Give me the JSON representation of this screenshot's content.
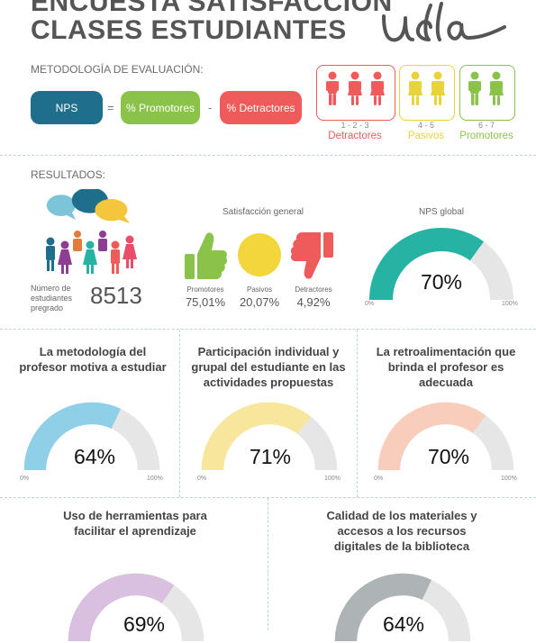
{
  "header": {
    "title_line1": "ENCUESTA SATISFACCIÓN",
    "title_line2": "CLASES ESTUDIANTES",
    "logo_text": "udla"
  },
  "methodology": {
    "label": "METODOLOGÍA DE EVALUACIÓN:",
    "nps": "NPS",
    "equals": "=",
    "promoters": "% Promotores",
    "minus": "-",
    "detractors": "% Detractores"
  },
  "scale": {
    "detractors_nums": "1 - 2 - 3",
    "detractors_label": "Detractores",
    "passives_nums": "4 - 5",
    "passives_label": "Pasivos",
    "promoters_nums": "6 - 7",
    "promoters_label": "Promotores"
  },
  "results": {
    "label": "RESULTADOS:",
    "students_label": "Número de estudiantes pregrado",
    "students_count": "8513",
    "satisfaction_title": "Satisfacción general",
    "promoters_label": "Promotores",
    "promoters_value": "75,01%",
    "passives_label": "Pasivos",
    "passives_value": "20,07%",
    "detractors_label": "Detractores",
    "detractors_value": "4,92%",
    "nps_title": "NPS global",
    "nps_value": "70%",
    "nps_level": 0.7,
    "tick_min": "0%",
    "tick_max": "100%"
  },
  "cards": [
    {
      "title": "La metodología del profesor motiva a estudiar",
      "value": "64%",
      "level": 0.64,
      "color": "#8fd0e8"
    },
    {
      "title": "Participación individual y grupal del estudiante en las actividades propuestas",
      "value": "71%",
      "level": 0.71,
      "color": "#f7e69b"
    },
    {
      "title": "La retroalimentación que brinda el profesor es adecuada",
      "value": "70%",
      "level": 0.7,
      "color": "#f9cdbb"
    },
    {
      "title": "Uso de herramientas para facilitar el aprendizaje",
      "value": "69%",
      "level": 0.69,
      "color": "#d9bfe0"
    },
    {
      "title": "Calidad de los materiales y accesos a los recursos digitales de la biblioteca",
      "value": "64%",
      "level": 0.64,
      "color": "#aeb4b5"
    }
  ],
  "colors": {
    "nps": "#1f6e8c",
    "promoters": "#8bc34a",
    "detractors": "#ef5b5b",
    "passives": "#e8d43a",
    "teal": "#26b3a4",
    "gauge_bg": "#e6e6e6"
  }
}
